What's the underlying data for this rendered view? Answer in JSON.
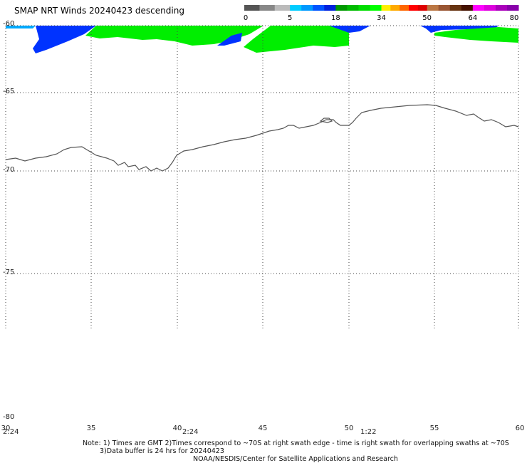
{
  "header": {
    "title": "SMAP NRT Winds  20240423 descending"
  },
  "colorbar": {
    "ticks": [
      "0",
      "5",
      "18",
      "34",
      "50",
      "64",
      "80"
    ],
    "segments": [
      {
        "from": 0,
        "to": 5,
        "colors": [
          "#555555",
          "#888888",
          "#bbbbbb"
        ]
      },
      {
        "from": 5,
        "to": 18,
        "colors": [
          "#00ccff",
          "#0099ff",
          "#0055ff",
          "#0022dd"
        ]
      },
      {
        "from": 18,
        "to": 34,
        "colors": [
          "#009900",
          "#00bb00",
          "#00dd00",
          "#00ff00"
        ]
      },
      {
        "from": 34,
        "to": 50,
        "colors": [
          "#ffee00",
          "#ffaa00",
          "#ff6600",
          "#ff0000",
          "#dd0000"
        ]
      },
      {
        "from": 50,
        "to": 64,
        "colors": [
          "#bb7744",
          "#995533",
          "#663311",
          "#441100"
        ]
      },
      {
        "from": 64,
        "to": 80,
        "colors": [
          "#ff00ff",
          "#dd00dd",
          "#aa00bb",
          "#8800aa"
        ]
      }
    ]
  },
  "map": {
    "lat_ticks": [
      "-60",
      "-65",
      "-70",
      "-75",
      "-80"
    ],
    "lon_ticks": [
      "30",
      "35",
      "40",
      "45",
      "50",
      "55",
      "60"
    ],
    "time_labels": [
      "2:24",
      "2:24",
      "1:22"
    ],
    "swath_colors": {
      "low": "#0033ff",
      "moderate": "#00ee00",
      "light": "#00aaff"
    }
  },
  "notes": {
    "line1": "Note: 1) Times are GMT 2)Times correspond to ~70S at right swath edge - time is right swath for overlapping swaths at ~70S",
    "line2": "3)Data buffer is 24 hrs for 20240423",
    "line3": "NOAA/NESDIS/Center for Satellite Applications and Research"
  }
}
